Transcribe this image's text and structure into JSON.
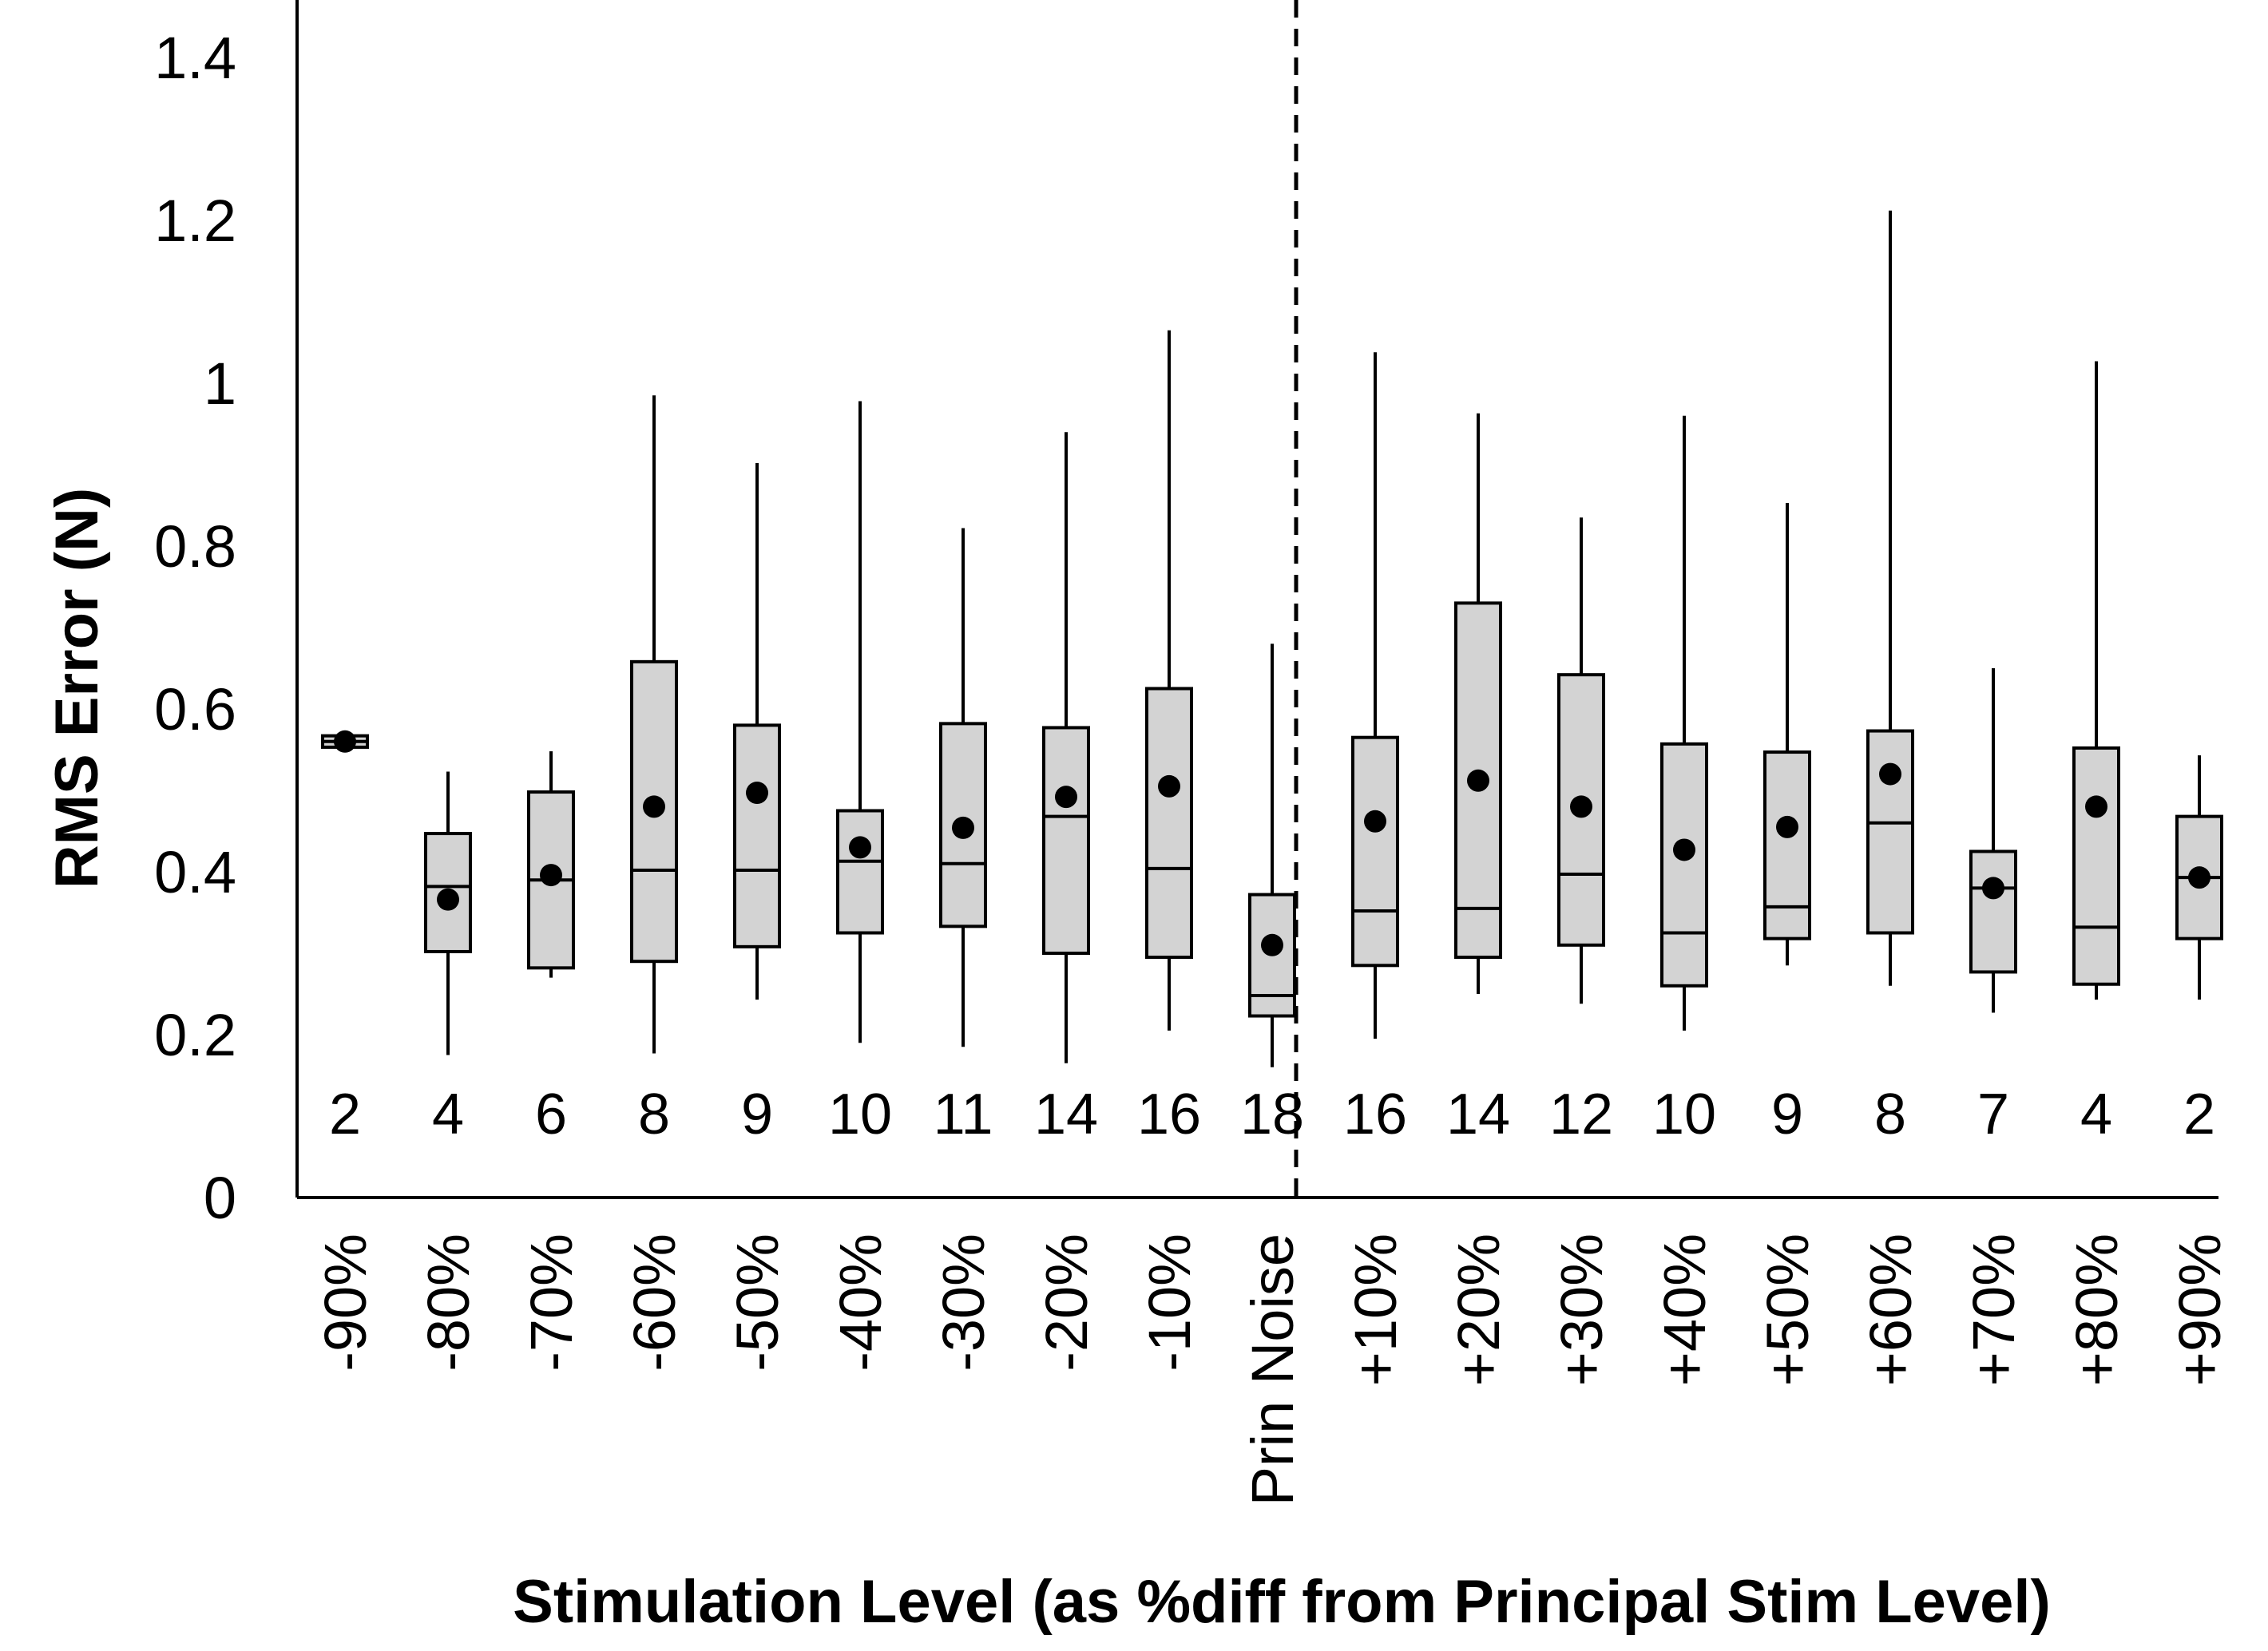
{
  "chart_data": {
    "type": "box",
    "xlabel": "Stimulation Level (as %diff from Principal Stim Level)",
    "ylabel": "RMS Error (N)",
    "ylim": [
      0,
      1.45
    ],
    "yticks": [
      0,
      0.2,
      0.4,
      0.6,
      0.8,
      1,
      1.2,
      1.4
    ],
    "ytick_labels": [
      "0",
      "0.2",
      "0.4",
      "0.6",
      "0.8",
      "1",
      "1.2",
      "1.4"
    ],
    "reference_line": {
      "category": "Prin Noise",
      "style": "dashed"
    },
    "box_color": "#d3d3d3",
    "categories": [
      "-90%",
      "-80%",
      "-70%",
      "-60%",
      "-50%",
      "-40%",
      "-30%",
      "-20%",
      "-10%",
      "Prin Noise",
      "+10%",
      "+20%",
      "+30%",
      "+40%",
      "+50%",
      "+60%",
      "+70%",
      "+80%",
      "+90%"
    ],
    "counts": [
      "2",
      "4",
      "6",
      "8",
      "9",
      "10",
      "11",
      "14",
      "16",
      "18",
      "16",
      "14",
      "12",
      "10",
      "9",
      "8",
      "7",
      "4",
      "2"
    ],
    "boxes": [
      {
        "min": 0.553,
        "q1": 0.553,
        "median": 0.56,
        "q3": 0.567,
        "max": 0.567,
        "mean": 0.56
      },
      {
        "min": 0.175,
        "q1": 0.302,
        "median": 0.382,
        "q3": 0.447,
        "max": 0.523,
        "mean": 0.366
      },
      {
        "min": 0.27,
        "q1": 0.282,
        "median": 0.39,
        "q3": 0.498,
        "max": 0.548,
        "mean": 0.396
      },
      {
        "min": 0.177,
        "q1": 0.29,
        "median": 0.402,
        "q3": 0.658,
        "max": 0.985,
        "mean": 0.48
      },
      {
        "min": 0.243,
        "q1": 0.308,
        "median": 0.402,
        "q3": 0.58,
        "max": 0.902,
        "mean": 0.497
      },
      {
        "min": 0.19,
        "q1": 0.325,
        "median": 0.413,
        "q3": 0.475,
        "max": 0.978,
        "mean": 0.43
      },
      {
        "min": 0.185,
        "q1": 0.333,
        "median": 0.41,
        "q3": 0.582,
        "max": 0.822,
        "mean": 0.454
      },
      {
        "min": 0.165,
        "q1": 0.3,
        "median": 0.468,
        "q3": 0.577,
        "max": 0.94,
        "mean": 0.492
      },
      {
        "min": 0.205,
        "q1": 0.295,
        "median": 0.404,
        "q3": 0.625,
        "max": 1.065,
        "mean": 0.505
      },
      {
        "min": 0.16,
        "q1": 0.223,
        "median": 0.248,
        "q3": 0.372,
        "max": 0.68,
        "mean": 0.31
      },
      {
        "min": 0.195,
        "q1": 0.285,
        "median": 0.352,
        "q3": 0.565,
        "max": 1.038,
        "mean": 0.462
      },
      {
        "min": 0.25,
        "q1": 0.295,
        "median": 0.355,
        "q3": 0.73,
        "max": 0.963,
        "mean": 0.512
      },
      {
        "min": 0.238,
        "q1": 0.31,
        "median": 0.397,
        "q3": 0.642,
        "max": 0.835,
        "mean": 0.48
      },
      {
        "min": 0.205,
        "q1": 0.26,
        "median": 0.325,
        "q3": 0.557,
        "max": 0.96,
        "mean": 0.427
      },
      {
        "min": 0.285,
        "q1": 0.318,
        "median": 0.357,
        "q3": 0.547,
        "max": 0.853,
        "mean": 0.455
      },
      {
        "min": 0.26,
        "q1": 0.325,
        "median": 0.46,
        "q3": 0.573,
        "max": 1.212,
        "mean": 0.52
      },
      {
        "min": 0.227,
        "q1": 0.277,
        "median": 0.38,
        "q3": 0.425,
        "max": 0.65,
        "mean": 0.38
      },
      {
        "min": 0.243,
        "q1": 0.262,
        "median": 0.332,
        "q3": 0.552,
        "max": 1.027,
        "mean": 0.48
      },
      {
        "min": 0.243,
        "q1": 0.318,
        "median": 0.393,
        "q3": 0.468,
        "max": 0.543,
        "mean": 0.393
      }
    ]
  }
}
